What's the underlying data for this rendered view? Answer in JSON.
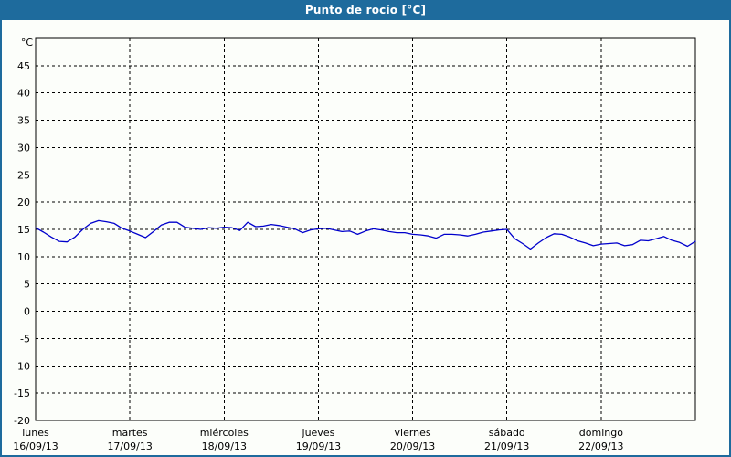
{
  "window": {
    "title": "Punto de rocío [°C]",
    "frame_color": "#1e6b9d",
    "title_text_color": "#ffffff",
    "background_color": "#fcfefa"
  },
  "chart_data": {
    "type": "line",
    "title": "Punto de rocío [°C]",
    "xlabel": "",
    "ylabel": "°C",
    "ylim": [
      -20,
      50
    ],
    "yticks": [
      45,
      40,
      35,
      30,
      25,
      20,
      15,
      10,
      5,
      0,
      -5,
      -10,
      -15,
      -20
    ],
    "grid": "dashed",
    "legend": "none",
    "line_color": "#0000cc",
    "axis_color": "#000000",
    "days": [
      {
        "name": "lunes",
        "date": "16/09/13"
      },
      {
        "name": "martes",
        "date": "17/09/13"
      },
      {
        "name": "miércoles",
        "date": "18/09/13"
      },
      {
        "name": "jueves",
        "date": "19/09/13"
      },
      {
        "name": "viernes",
        "date": "20/09/13"
      },
      {
        "name": "sábado",
        "date": "21/09/13"
      },
      {
        "name": "domingo",
        "date": "22/09/13"
      }
    ],
    "series": [
      {
        "name": "Punto de rocío",
        "unit": "°C",
        "interval_hours": 2,
        "values": [
          15.3,
          14.5,
          13.6,
          12.8,
          12.7,
          13.6,
          15.0,
          16.1,
          16.6,
          16.4,
          16.1,
          15.2,
          14.7,
          14.1,
          13.5,
          14.6,
          15.8,
          16.3,
          16.3,
          15.4,
          15.2,
          15.0,
          15.3,
          15.2,
          15.4,
          15.3,
          14.8,
          16.3,
          15.5,
          15.6,
          15.9,
          15.7,
          15.4,
          15.1,
          14.4,
          14.9,
          15.1,
          15.2,
          14.9,
          14.6,
          14.7,
          14.1,
          14.7,
          15.1,
          14.9,
          14.6,
          14.4,
          14.4,
          14.1,
          14.0,
          13.8,
          13.4,
          14.1,
          14.1,
          14.0,
          13.8,
          14.1,
          14.5,
          14.7,
          14.9,
          15.0,
          13.3,
          12.4,
          11.4,
          12.5,
          13.5,
          14.2,
          14.1,
          13.6,
          12.9,
          12.5,
          12.0,
          12.3,
          12.4,
          12.5,
          12.0,
          12.2,
          13.0,
          12.9,
          13.3,
          13.7,
          13.0,
          12.6,
          11.9,
          12.8
        ]
      }
    ]
  }
}
